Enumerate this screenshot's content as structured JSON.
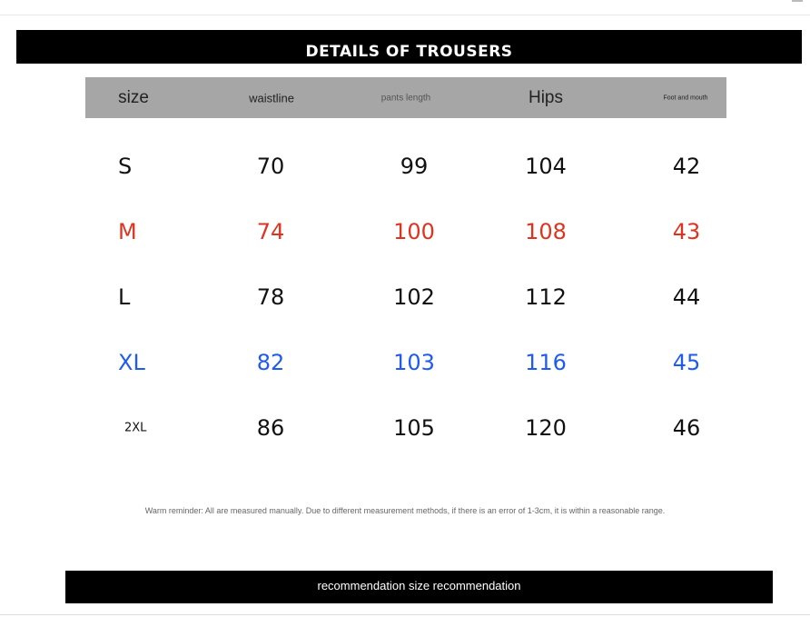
{
  "title": "DETAILS OF TROUSERS",
  "headers": [
    "size",
    "waistline",
    "pants length",
    "Hips",
    "Foot and mouth"
  ],
  "rows": [
    {
      "cells": [
        "S",
        "70",
        "99",
        "104",
        "42"
      ],
      "color": "#111111"
    },
    {
      "cells": [
        "M",
        "74",
        "100",
        "108",
        "43"
      ],
      "color": "#e0331f"
    },
    {
      "cells": [
        "L",
        "78",
        "102",
        "112",
        "44"
      ],
      "color": "#111111"
    },
    {
      "cells": [
        "XL",
        "82",
        "103",
        "116",
        "45"
      ],
      "color": "#1f5bf0"
    },
    {
      "cells": [
        "2XL",
        "86",
        "105",
        "120",
        "46"
      ],
      "color": "#111111"
    }
  ],
  "note": "Warm reminder: All are measured manually. Due to different measurement methods, if there is an error of 1-3cm, it is within a reasonable range.",
  "footer": "recommendation size recommendation"
}
